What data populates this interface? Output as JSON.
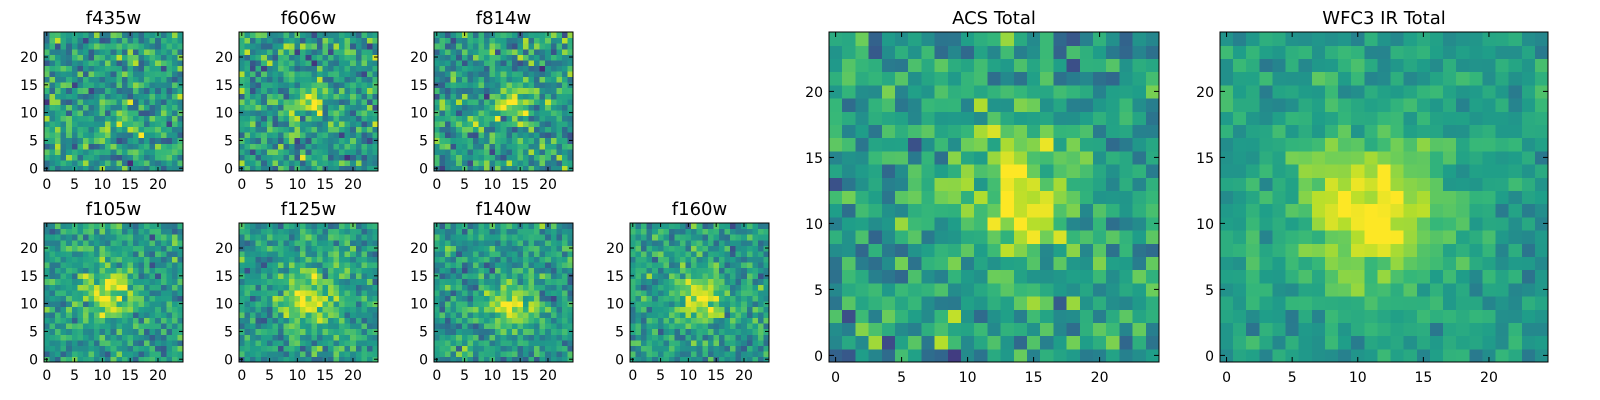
{
  "figure": {
    "colormap": "viridis",
    "background": "#ffffff"
  },
  "chart_data": [
    {
      "id": "f435w",
      "type": "heatmap",
      "title": "f435w",
      "grid_size": 25,
      "xlim": [
        0,
        25
      ],
      "ylim": [
        0,
        25
      ],
      "xticks": [
        0,
        5,
        10,
        15,
        20
      ],
      "yticks": [
        0,
        5,
        10,
        15,
        20
      ],
      "source_center": [
        15,
        9
      ],
      "source_sigma": 2.0,
      "source_amplitude": 0.1,
      "noise": 0.22,
      "seed": 11
    },
    {
      "id": "f606w",
      "type": "heatmap",
      "title": "f606w",
      "grid_size": 25,
      "xlim": [
        0,
        25
      ],
      "ylim": [
        0,
        25
      ],
      "xticks": [
        0,
        5,
        10,
        15,
        20
      ],
      "yticks": [
        0,
        5,
        10,
        15,
        20
      ],
      "source_center": [
        12,
        12
      ],
      "source_sigma": 2.0,
      "source_amplitude": 0.3,
      "noise": 0.22,
      "seed": 23
    },
    {
      "id": "f814w",
      "type": "heatmap",
      "title": "f814w",
      "grid_size": 25,
      "xlim": [
        0,
        25
      ],
      "ylim": [
        0,
        25
      ],
      "xticks": [
        0,
        5,
        10,
        15,
        20
      ],
      "yticks": [
        0,
        5,
        10,
        15,
        20
      ],
      "source_center": [
        14,
        12
      ],
      "source_sigma": 2.0,
      "source_amplitude": 0.35,
      "noise": 0.22,
      "seed": 37
    },
    {
      "id": "f105w",
      "type": "heatmap",
      "title": "f105w",
      "grid_size": 25,
      "xlim": [
        0,
        25
      ],
      "ylim": [
        0,
        25
      ],
      "xticks": [
        0,
        5,
        10,
        15,
        20
      ],
      "yticks": [
        0,
        5,
        10,
        15,
        20
      ],
      "source_center": [
        11,
        12
      ],
      "source_sigma": 2.8,
      "source_amplitude": 0.42,
      "noise": 0.17,
      "seed": 41
    },
    {
      "id": "f125w",
      "type": "heatmap",
      "title": "f125w",
      "grid_size": 25,
      "xlim": [
        0,
        25
      ],
      "ylim": [
        0,
        25
      ],
      "xticks": [
        0,
        5,
        10,
        15,
        20
      ],
      "yticks": [
        0,
        5,
        10,
        15,
        20
      ],
      "source_center": [
        12,
        11
      ],
      "source_sigma": 3.2,
      "source_amplitude": 0.4,
      "noise": 0.17,
      "seed": 53
    },
    {
      "id": "f140w",
      "type": "heatmap",
      "title": "f140w",
      "grid_size": 25,
      "xlim": [
        0,
        25
      ],
      "ylim": [
        0,
        25
      ],
      "xticks": [
        0,
        5,
        10,
        15,
        20
      ],
      "yticks": [
        0,
        5,
        10,
        15,
        20
      ],
      "source_center": [
        13,
        10
      ],
      "source_sigma": 2.8,
      "source_amplitude": 0.38,
      "noise": 0.17,
      "seed": 67
    },
    {
      "id": "f160w",
      "type": "heatmap",
      "title": "f160w",
      "grid_size": 25,
      "xlim": [
        0,
        25
      ],
      "ylim": [
        0,
        25
      ],
      "xticks": [
        0,
        5,
        10,
        15,
        20
      ],
      "yticks": [
        0,
        5,
        10,
        15,
        20
      ],
      "source_center": [
        12,
        11
      ],
      "source_sigma": 2.8,
      "source_amplitude": 0.4,
      "noise": 0.17,
      "seed": 79
    },
    {
      "id": "acs_total",
      "type": "heatmap",
      "title": "ACS Total",
      "grid_size": 25,
      "xlim": [
        0,
        25
      ],
      "ylim": [
        0,
        25
      ],
      "xticks": [
        0,
        5,
        10,
        15,
        20
      ],
      "yticks": [
        0,
        5,
        10,
        15,
        20
      ],
      "source_center": [
        14,
        12
      ],
      "source_sigma": 3.2,
      "source_amplitude": 0.4,
      "noise": 0.18,
      "seed": 97
    },
    {
      "id": "wfc3_ir_total",
      "type": "heatmap",
      "title": "WFC3 IR Total",
      "grid_size": 25,
      "xlim": [
        0,
        25
      ],
      "ylim": [
        0,
        25
      ],
      "xticks": [
        0,
        5,
        10,
        15,
        20
      ],
      "yticks": [
        0,
        5,
        10,
        15,
        20
      ],
      "source_center": [
        11,
        11
      ],
      "source_sigma": 4.0,
      "source_amplitude": 0.45,
      "noise": 0.1,
      "seed": 131
    }
  ]
}
